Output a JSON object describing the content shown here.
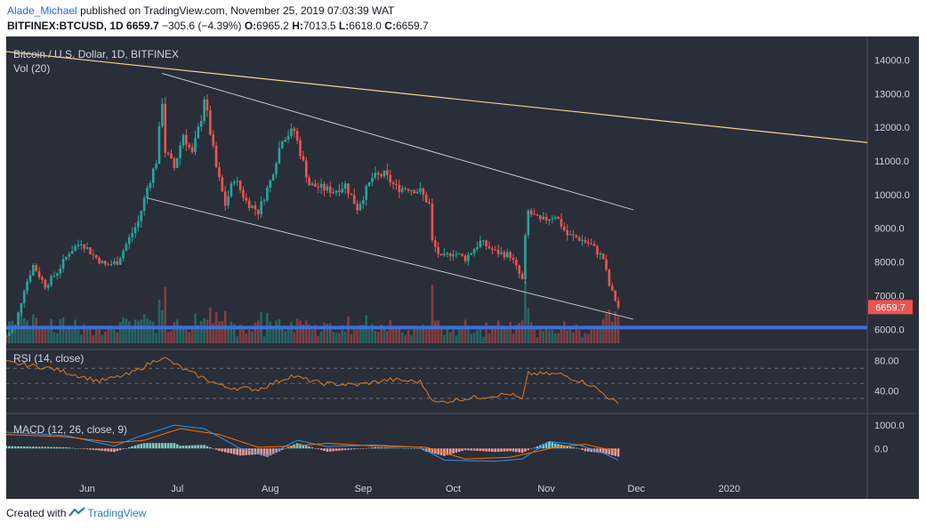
{
  "header": {
    "user": "Alade_Michael",
    "published_text": "published on TradingView.com, November 25, 2019 07:03:39 WAT",
    "symbol": "BITFINEX:BTCUSD, 1D",
    "last": "6659.7",
    "change": "−305.6 (−4.39%)",
    "o_label": "O:",
    "o": "6965.2",
    "h_label": "H:",
    "h": "7013.5",
    "l_label": "L:",
    "l": "6618.0",
    "c_label": "C:",
    "c": "6659.7"
  },
  "footer": {
    "created_with": "Created with",
    "brand": "TradingView"
  },
  "colors": {
    "background": "#2a2e39",
    "up": "#26a69a",
    "down": "#ef5350",
    "trendline_yellow": "#f5d08a",
    "channel": "#c5c8d0",
    "support": "#3b6fd8",
    "rsi": "#e07b1f",
    "macd": "#2196f3",
    "signal": "#ff6d00",
    "hist_up": "#80cbc4",
    "hist_down": "#ef9a9a",
    "price_tag": "#ef5350"
  },
  "chart_data": {
    "type": "candlestick",
    "title": "Bitcoin / U.S. Dollar, 1D, BITFINEX",
    "subtitle": "Vol (20)",
    "timeframe": "1D",
    "x_range": [
      "2019-05-05",
      "2020-02-16"
    ],
    "x_ticks": [
      "Jun",
      "Jul",
      "Aug",
      "Sep",
      "Oct",
      "Nov",
      "Dec",
      "2020"
    ],
    "x_tick_dates": [
      "2019-06-01",
      "2019-07-01",
      "2019-08-01",
      "2019-09-01",
      "2019-10-01",
      "2019-11-01",
      "2019-12-01",
      "2020-01-01"
    ],
    "price_panel": {
      "ylim": [
        5400,
        14700
      ],
      "y_ticks": [
        "6000.0",
        "7000.0",
        "8000.0",
        "9000.0",
        "10000.0",
        "11000.0",
        "12000.0",
        "13000.0",
        "14000.0"
      ],
      "last_price": "6659.7",
      "series": [
        {
          "name": "Bitcoin / U.S. Dollar",
          "kind": "candles-close-path",
          "points": [
            [
              "2019-05-05",
              5800
            ],
            [
              "2019-05-08",
              6100
            ],
            [
              "2019-05-11",
              7200
            ],
            [
              "2019-05-14",
              7900
            ],
            [
              "2019-05-18",
              7300
            ],
            [
              "2019-05-22",
              7700
            ],
            [
              "2019-05-26",
              8300
            ],
            [
              "2019-05-30",
              8600
            ],
            [
              "2019-06-03",
              8200
            ],
            [
              "2019-06-07",
              7900
            ],
            [
              "2019-06-11",
              8000
            ],
            [
              "2019-06-15",
              8700
            ],
            [
              "2019-06-18",
              9200
            ],
            [
              "2019-06-21",
              10200
            ],
            [
              "2019-06-24",
              11000
            ],
            [
              "2019-06-26",
              12800
            ],
            [
              "2019-06-27",
              11300
            ],
            [
              "2019-06-30",
              10800
            ],
            [
              "2019-07-03",
              11800
            ],
            [
              "2019-07-06",
              11200
            ],
            [
              "2019-07-09",
              12300
            ],
            [
              "2019-07-10",
              12900
            ],
            [
              "2019-07-14",
              10800
            ],
            [
              "2019-07-17",
              9700
            ],
            [
              "2019-07-20",
              10500
            ],
            [
              "2019-07-24",
              9800
            ],
            [
              "2019-07-28",
              9500
            ],
            [
              "2019-08-01",
              10400
            ],
            [
              "2019-08-05",
              11700
            ],
            [
              "2019-08-09",
              11900
            ],
            [
              "2019-08-14",
              10300
            ],
            [
              "2019-08-18",
              10200
            ],
            [
              "2019-08-22",
              10100
            ],
            [
              "2019-08-26",
              10300
            ],
            [
              "2019-08-30",
              9600
            ],
            [
              "2019-09-04",
              10500
            ],
            [
              "2019-09-08",
              10600
            ],
            [
              "2019-09-12",
              10200
            ],
            [
              "2019-09-16",
              10200
            ],
            [
              "2019-09-20",
              10100
            ],
            [
              "2019-09-23",
              9700
            ],
            [
              "2019-09-24",
              8600
            ],
            [
              "2019-09-27",
              8100
            ],
            [
              "2019-10-01",
              8300
            ],
            [
              "2019-10-05",
              8100
            ],
            [
              "2019-10-10",
              8600
            ],
            [
              "2019-10-15",
              8300
            ],
            [
              "2019-10-20",
              8200
            ],
            [
              "2019-10-24",
              7450
            ],
            [
              "2019-10-25",
              8700
            ],
            [
              "2019-10-26",
              9500
            ],
            [
              "2019-10-30",
              9200
            ],
            [
              "2019-11-04",
              9400
            ],
            [
              "2019-11-08",
              8800
            ],
            [
              "2019-11-12",
              8700
            ],
            [
              "2019-11-16",
              8500
            ],
            [
              "2019-11-20",
              8100
            ],
            [
              "2019-11-22",
              7300
            ],
            [
              "2019-11-25",
              6659.7
            ]
          ]
        }
      ],
      "lines": [
        {
          "name": "long-term-descending-trendline",
          "points": [
            [
              "2019-05-05",
              14250
            ],
            [
              "2020-02-16",
              11550
            ]
          ]
        },
        {
          "name": "channel-upper",
          "points": [
            [
              "2019-06-26",
              13600
            ],
            [
              "2019-11-30",
              9550
            ]
          ]
        },
        {
          "name": "channel-lower",
          "points": [
            [
              "2019-06-21",
              9900
            ],
            [
              "2019-11-30",
              6300
            ]
          ]
        },
        {
          "name": "horizontal-support",
          "points": [
            [
              "2019-05-05",
              6050
            ],
            [
              "2020-02-16",
              6050
            ]
          ]
        }
      ]
    },
    "volume_panel": {
      "ylim": [
        0,
        1
      ],
      "note": "relative daily volume bars"
    },
    "rsi_panel": {
      "title": "RSI (14, close)",
      "ylim": [
        10,
        95
      ],
      "y_ticks": [
        "40.00",
        "80.00"
      ],
      "bands": [
        70,
        50,
        30
      ],
      "series": [
        {
          "name": "RSI",
          "points": [
            [
              "2019-05-05",
              78
            ],
            [
              "2019-05-20",
              70
            ],
            [
              "2019-06-05",
              53
            ],
            [
              "2019-06-15",
              62
            ],
            [
              "2019-06-26",
              85
            ],
            [
              "2019-07-05",
              65
            ],
            [
              "2019-07-17",
              45
            ],
            [
              "2019-07-28",
              42
            ],
            [
              "2019-08-08",
              60
            ],
            [
              "2019-08-18",
              50
            ],
            [
              "2019-08-30",
              48
            ],
            [
              "2019-09-10",
              55
            ],
            [
              "2019-09-20",
              52
            ],
            [
              "2019-09-25",
              24
            ],
            [
              "2019-10-05",
              30
            ],
            [
              "2019-10-20",
              36
            ],
            [
              "2019-10-24",
              28
            ],
            [
              "2019-10-26",
              63
            ],
            [
              "2019-11-06",
              62
            ],
            [
              "2019-11-16",
              48
            ],
            [
              "2019-11-25",
              22
            ]
          ]
        }
      ]
    },
    "macd_panel": {
      "title": "MACD (12, 26, close, 9)",
      "ylim": [
        -1400,
        1500
      ],
      "y_ticks": [
        "0.0",
        "1000.0"
      ],
      "series": [
        {
          "name": "MACD",
          "points": [
            [
              "2019-05-05",
              700
            ],
            [
              "2019-05-25",
              550
            ],
            [
              "2019-06-10",
              100
            ],
            [
              "2019-06-18",
              500
            ],
            [
              "2019-06-30",
              1000
            ],
            [
              "2019-07-10",
              850
            ],
            [
              "2019-07-22",
              0
            ],
            [
              "2019-07-31",
              -300
            ],
            [
              "2019-08-10",
              350
            ],
            [
              "2019-08-20",
              80
            ],
            [
              "2019-09-05",
              150
            ],
            [
              "2019-09-20",
              50
            ],
            [
              "2019-09-28",
              -500
            ],
            [
              "2019-10-15",
              -550
            ],
            [
              "2019-10-24",
              -450
            ],
            [
              "2019-11-02",
              300
            ],
            [
              "2019-11-12",
              150
            ],
            [
              "2019-11-20",
              -200
            ],
            [
              "2019-11-25",
              -500
            ]
          ]
        },
        {
          "name": "Signal",
          "points": [
            [
              "2019-05-05",
              600
            ],
            [
              "2019-05-25",
              500
            ],
            [
              "2019-06-10",
              250
            ],
            [
              "2019-06-20",
              350
            ],
            [
              "2019-07-02",
              850
            ],
            [
              "2019-07-15",
              600
            ],
            [
              "2019-07-28",
              50
            ],
            [
              "2019-08-08",
              100
            ],
            [
              "2019-08-20",
              220
            ],
            [
              "2019-09-05",
              100
            ],
            [
              "2019-09-22",
              50
            ],
            [
              "2019-10-05",
              -450
            ],
            [
              "2019-10-20",
              -380
            ],
            [
              "2019-11-04",
              50
            ],
            [
              "2019-11-14",
              180
            ],
            [
              "2019-11-25",
              -150
            ]
          ]
        }
      ]
    }
  }
}
